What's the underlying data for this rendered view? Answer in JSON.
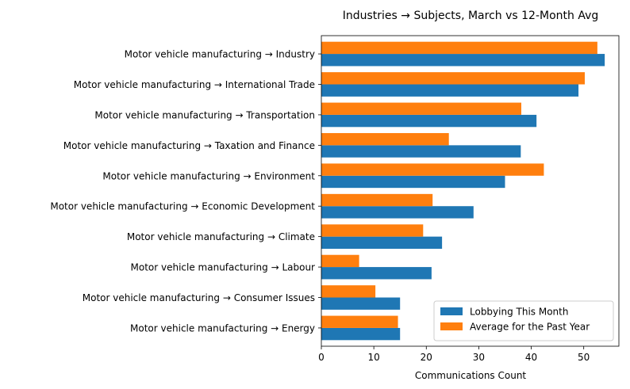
{
  "chart_data": {
    "type": "bar",
    "orientation": "horizontal",
    "title": "Industries → Subjects, March vs 12-Month Avg",
    "xlabel": "Communications Count",
    "ylabel": "",
    "xlim": [
      0,
      56.7
    ],
    "xticks": [
      0,
      10,
      20,
      30,
      40,
      50
    ],
    "grid": false,
    "legend_position": "lower-right",
    "categories": [
      "Motor vehicle manufacturing → Industry",
      "Motor vehicle manufacturing → International Trade",
      "Motor vehicle manufacturing → Transportation",
      "Motor vehicle manufacturing → Taxation and Finance",
      "Motor vehicle manufacturing → Environment",
      "Motor vehicle manufacturing → Economic Development",
      "Motor vehicle manufacturing → Climate",
      "Motor vehicle manufacturing → Labour",
      "Motor vehicle manufacturing → Consumer Issues",
      "Motor vehicle manufacturing → Energy"
    ],
    "series": [
      {
        "name": "Lobbying This Month",
        "color": "#1f77b4",
        "values": [
          54,
          49,
          41,
          38,
          35,
          29,
          23,
          21,
          15,
          15
        ]
      },
      {
        "name": "Average for the Past Year",
        "color": "#ff7f0e",
        "values": [
          52.6,
          50.2,
          38.1,
          24.3,
          42.4,
          21.2,
          19.4,
          7.2,
          10.3,
          14.6
        ]
      }
    ]
  }
}
